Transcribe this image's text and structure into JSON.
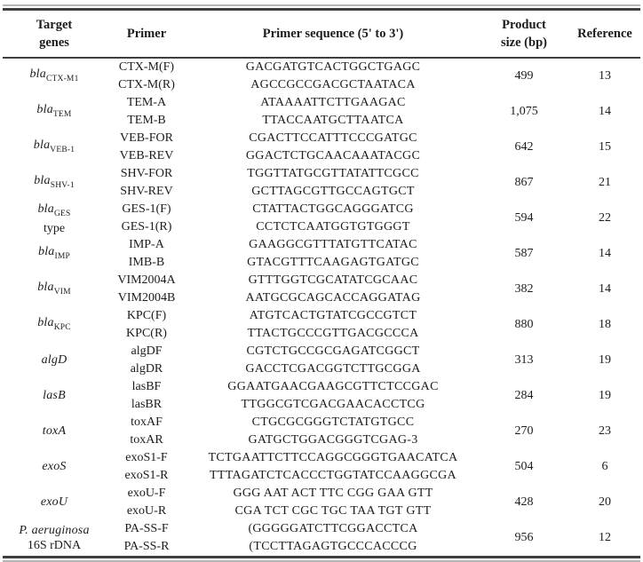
{
  "table": {
    "headers": [
      "Target\ngenes",
      "Primer",
      "Primer sequence (5' to 3')",
      "Product\nsize (bp)",
      "Reference"
    ],
    "rows": [
      {
        "gene": {
          "name": "bla",
          "sub": "CTX-M1",
          "italic": true,
          "line2": ""
        },
        "primers": [
          {
            "name": "CTX-M(F)",
            "sequence": "GACGATGTCACTGGCTGAGC"
          },
          {
            "name": "CTX-M(R)",
            "sequence": "AGCCGCCGACGCTAATACA"
          }
        ],
        "product_size": "499",
        "reference": "13"
      },
      {
        "gene": {
          "name": "bla",
          "sub": "TEM",
          "italic": true,
          "line2": ""
        },
        "primers": [
          {
            "name": "TEM-A",
            "sequence": "ATAAAATTCTTGAAGAC"
          },
          {
            "name": "TEM-B",
            "sequence": "TTACCAATGCTTAATCA"
          }
        ],
        "product_size": "1,075",
        "reference": "14"
      },
      {
        "gene": {
          "name": "bla",
          "sub": "VEB-1",
          "italic": true,
          "line2": ""
        },
        "primers": [
          {
            "name": "VEB-FOR",
            "sequence": "CGACTTCCATTTCCCGATGC"
          },
          {
            "name": "VEB-REV",
            "sequence": "GGACTCTGCAACAAATACGC"
          }
        ],
        "product_size": "642",
        "reference": "15"
      },
      {
        "gene": {
          "name": "bla",
          "sub": "SHV-1",
          "italic": true,
          "line2": ""
        },
        "primers": [
          {
            "name": "SHV-FOR",
            "sequence": "TGGTTATGCGTTATATTCGCC"
          },
          {
            "name": "SHV-REV",
            "sequence": "GCTTAGCGTTGCCAGTGCT"
          }
        ],
        "product_size": "867",
        "reference": "21"
      },
      {
        "gene": {
          "name": "bla",
          "sub": "GES",
          "italic": true,
          "line2": "type"
        },
        "primers": [
          {
            "name": "GES-1(F)",
            "sequence": "CTATTACTGGCAGGGATCG"
          },
          {
            "name": "GES-1(R)",
            "sequence": "CCTCTCAATGGTGTGGGT"
          }
        ],
        "product_size": "594",
        "reference": "22"
      },
      {
        "gene": {
          "name": "bla",
          "sub": "IMP",
          "italic": true,
          "line2": ""
        },
        "primers": [
          {
            "name": "IMP-A",
            "sequence": "GAAGGCGTTTATGTTCATAC"
          },
          {
            "name": "IMB-B",
            "sequence": "GTACGTTTCAAGAGTGATGC"
          }
        ],
        "product_size": "587",
        "reference": "14"
      },
      {
        "gene": {
          "name": "bla",
          "sub": "VIM",
          "italic": true,
          "line2": ""
        },
        "primers": [
          {
            "name": "VIM2004A",
            "sequence": "GTTTGGTCGCATATCGCAAC"
          },
          {
            "name": "VIM2004B",
            "sequence": "AATGCGCAGCACCAGGATAG"
          }
        ],
        "product_size": "382",
        "reference": "14"
      },
      {
        "gene": {
          "name": "bla",
          "sub": "KPC",
          "italic": true,
          "line2": ""
        },
        "primers": [
          {
            "name": "KPC(F)",
            "sequence": "ATGTCACTGTATCGCCGTCT"
          },
          {
            "name": "KPC(R)",
            "sequence": "TTACTGCCCGTTGACGCCCA"
          }
        ],
        "product_size": "880",
        "reference": "18"
      },
      {
        "gene": {
          "name": "algD",
          "sub": "",
          "italic": true,
          "line2": ""
        },
        "primers": [
          {
            "name": "algDF",
            "sequence": "CGTCTGCCGCGAGATCGGCT"
          },
          {
            "name": "algDR",
            "sequence": "GACCTCGACGGTCTTGCGGA"
          }
        ],
        "product_size": "313",
        "reference": "19"
      },
      {
        "gene": {
          "name": "lasB",
          "sub": "",
          "italic": true,
          "line2": ""
        },
        "primers": [
          {
            "name": "lasBF",
            "sequence": "GGAATGAACGAAGCGTTCTCCGAC"
          },
          {
            "name": "lasBR",
            "sequence": "TTGGCGTCGACGAACACCTCG"
          }
        ],
        "product_size": "284",
        "reference": "19"
      },
      {
        "gene": {
          "name": "toxA",
          "sub": "",
          "italic": true,
          "line2": ""
        },
        "primers": [
          {
            "name": "toxAF",
            "sequence": "CTGCGCGGGTCTATGTGCC"
          },
          {
            "name": "toxAR",
            "sequence": "GATGCTGGACGGGTCGAG-3"
          }
        ],
        "product_size": "270",
        "reference": "23"
      },
      {
        "gene": {
          "name": "exoS",
          "sub": "",
          "italic": true,
          "line2": ""
        },
        "primers": [
          {
            "name": "exoS1-F",
            "sequence": "TCTGAATTCTTCCAGGCGGGTGAACATCA"
          },
          {
            "name": "exoS1-R",
            "sequence": "TTTAGATCTCACCCTGGTATCCAAGGCGA"
          }
        ],
        "product_size": "504",
        "reference": "6"
      },
      {
        "gene": {
          "name": "exoU",
          "sub": "",
          "italic": true,
          "line2": ""
        },
        "primers": [
          {
            "name": "exoU-F",
            "sequence": "GGG AAT ACT TTC CGG GAA GTT"
          },
          {
            "name": "exoU-R",
            "sequence": "CGA TCT CGC TGC TAA TGT GTT"
          }
        ],
        "product_size": "428",
        "reference": "20"
      },
      {
        "gene": {
          "name": "P. aeruginosa",
          "sub": "",
          "italic": true,
          "line2": "16S rDNA"
        },
        "primers": [
          {
            "name": "PA-SS-F",
            "sequence": "(GGGGGATCTTCGGACCTCA"
          },
          {
            "name": "PA-SS-R",
            "sequence": "(TCCTTAGAGTGCCCACCCG"
          }
        ],
        "product_size": "956",
        "reference": "12"
      }
    ]
  }
}
